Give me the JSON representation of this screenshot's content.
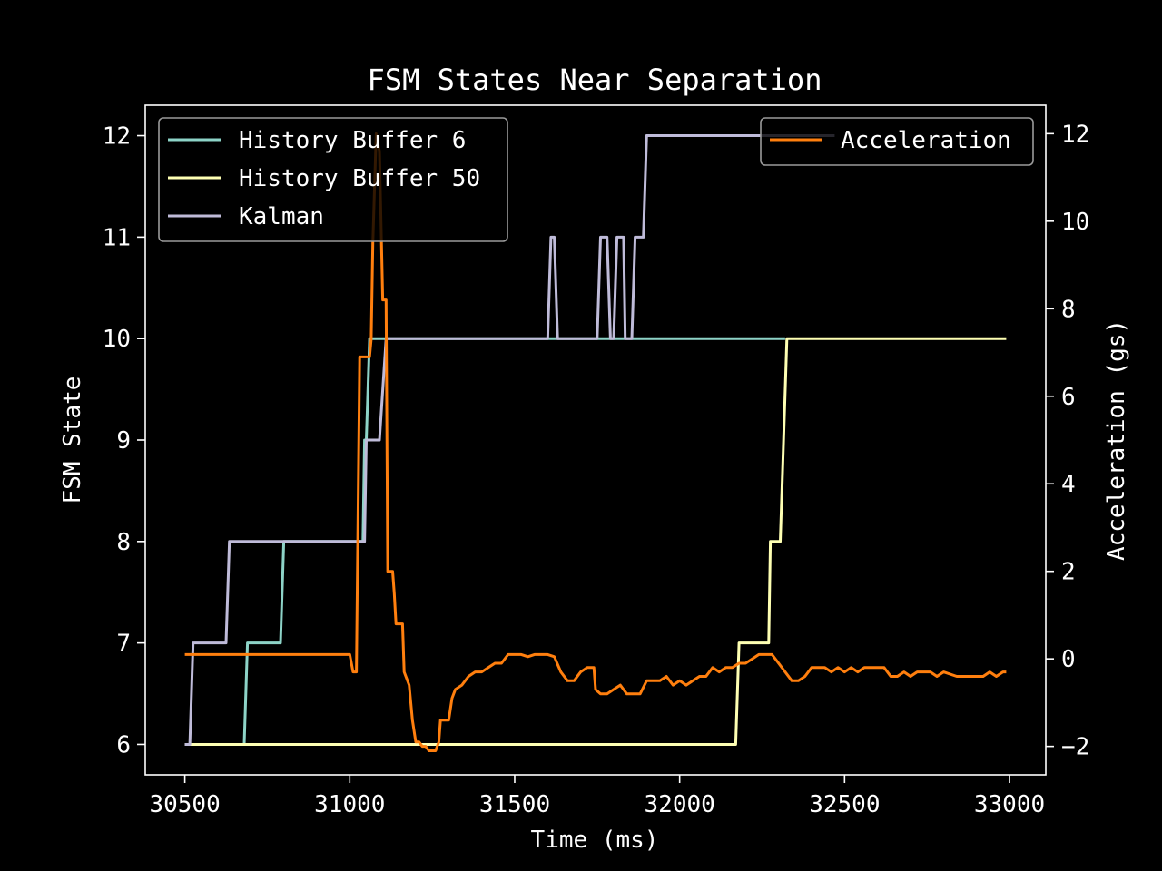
{
  "chart_data": {
    "type": "line",
    "title": "FSM States Near Separation",
    "xlabel": "Time (ms)",
    "ylabel": "FSM State",
    "ylabel_right": "Acceleration (gs)",
    "xlim": [
      30380,
      33110
    ],
    "ylim": [
      5.7,
      12.3
    ],
    "ylim_right": [
      -2.65,
      12.65
    ],
    "xticks": [
      30500,
      31000,
      31500,
      32000,
      32500,
      33000
    ],
    "yticks": [
      6,
      7,
      8,
      9,
      10,
      11,
      12
    ],
    "yticks_right": [
      -2,
      0,
      2,
      4,
      6,
      8,
      10,
      12
    ],
    "grid": false,
    "legend_left_position": "top-left",
    "legend_right_position": "top-right",
    "series": [
      {
        "name": "History Buffer 6",
        "axis": "left",
        "color": "#8dd3c7",
        "points": [
          [
            30500,
            6
          ],
          [
            30680,
            6
          ],
          [
            30690,
            7
          ],
          [
            30790,
            7
          ],
          [
            30800,
            8
          ],
          [
            31040,
            8
          ],
          [
            31045,
            9
          ],
          [
            31050,
            9
          ],
          [
            31060,
            10
          ],
          [
            32320,
            10
          ]
        ]
      },
      {
        "name": "History Buffer 50",
        "axis": "left",
        "color": "#feffb3",
        "points": [
          [
            30500,
            6
          ],
          [
            32170,
            6
          ],
          [
            32180,
            7
          ],
          [
            32270,
            7
          ],
          [
            32275,
            8
          ],
          [
            32305,
            8
          ],
          [
            32325,
            10
          ],
          [
            32990,
            10
          ]
        ]
      },
      {
        "name": "Kalman",
        "axis": "left",
        "color": "#bfbbd9",
        "points": [
          [
            30500,
            6
          ],
          [
            30515,
            6
          ],
          [
            30525,
            7
          ],
          [
            30625,
            7
          ],
          [
            30635,
            8
          ],
          [
            31045,
            8
          ],
          [
            31050,
            9
          ],
          [
            31090,
            9
          ],
          [
            31110,
            10
          ],
          [
            31600,
            10
          ],
          [
            31610,
            11
          ],
          [
            31620,
            11
          ],
          [
            31630,
            10
          ],
          [
            31750,
            10
          ],
          [
            31760,
            11
          ],
          [
            31780,
            11
          ],
          [
            31790,
            10
          ],
          [
            31800,
            10
          ],
          [
            31810,
            11
          ],
          [
            31830,
            11
          ],
          [
            31835,
            10
          ],
          [
            31855,
            10
          ],
          [
            31865,
            11
          ],
          [
            31890,
            11
          ],
          [
            31900,
            12
          ],
          [
            32470,
            12
          ]
        ]
      },
      {
        "name": "Acceleration",
        "axis": "right",
        "color": "#ff7f0e",
        "points": [
          [
            30500,
            0.1
          ],
          [
            31000,
            0.1
          ],
          [
            31010,
            -0.3
          ],
          [
            31020,
            -0.3
          ],
          [
            31030,
            6.9
          ],
          [
            31060,
            6.9
          ],
          [
            31065,
            7.3
          ],
          [
            31070,
            9.5
          ],
          [
            31080,
            12
          ],
          [
            31090,
            11.6
          ],
          [
            31100,
            8.2
          ],
          [
            31110,
            8.2
          ],
          [
            31115,
            2
          ],
          [
            31130,
            2
          ],
          [
            31135,
            1.5
          ],
          [
            31140,
            0.8
          ],
          [
            31160,
            0.8
          ],
          [
            31165,
            -0.3
          ],
          [
            31180,
            -0.6
          ],
          [
            31190,
            -1.4
          ],
          [
            31200,
            -1.9
          ],
          [
            31210,
            -1.9
          ],
          [
            31220,
            -2
          ],
          [
            31230,
            -2
          ],
          [
            31240,
            -2.1
          ],
          [
            31260,
            -2.1
          ],
          [
            31270,
            -1.9
          ],
          [
            31275,
            -1.4
          ],
          [
            31300,
            -1.4
          ],
          [
            31310,
            -0.9
          ],
          [
            31320,
            -0.7
          ],
          [
            31340,
            -0.6
          ],
          [
            31360,
            -0.4
          ],
          [
            31380,
            -0.3
          ],
          [
            31400,
            -0.3
          ],
          [
            31420,
            -0.2
          ],
          [
            31440,
            -0.1
          ],
          [
            31460,
            -0.1
          ],
          [
            31480,
            0.1
          ],
          [
            31520,
            0.1
          ],
          [
            31540,
            0.05
          ],
          [
            31560,
            0.1
          ],
          [
            31600,
            0.1
          ],
          [
            31620,
            0.05
          ],
          [
            31640,
            -0.3
          ],
          [
            31660,
            -0.5
          ],
          [
            31680,
            -0.5
          ],
          [
            31700,
            -0.3
          ],
          [
            31720,
            -0.2
          ],
          [
            31740,
            -0.2
          ],
          [
            31745,
            -0.7
          ],
          [
            31760,
            -0.8
          ],
          [
            31780,
            -0.8
          ],
          [
            31800,
            -0.7
          ],
          [
            31820,
            -0.6
          ],
          [
            31840,
            -0.8
          ],
          [
            31860,
            -0.8
          ],
          [
            31880,
            -0.8
          ],
          [
            31900,
            -0.5
          ],
          [
            31920,
            -0.5
          ],
          [
            31940,
            -0.5
          ],
          [
            31960,
            -0.4
          ],
          [
            31980,
            -0.6
          ],
          [
            32000,
            -0.5
          ],
          [
            32020,
            -0.6
          ],
          [
            32040,
            -0.5
          ],
          [
            32060,
            -0.4
          ],
          [
            32080,
            -0.4
          ],
          [
            32100,
            -0.2
          ],
          [
            32120,
            -0.3
          ],
          [
            32140,
            -0.2
          ],
          [
            32160,
            -0.2
          ],
          [
            32180,
            -0.1
          ],
          [
            32200,
            -0.1
          ],
          [
            32220,
            0
          ],
          [
            32240,
            0.1
          ],
          [
            32260,
            0.1
          ],
          [
            32280,
            0.1
          ],
          [
            32300,
            -0.1
          ],
          [
            32320,
            -0.3
          ],
          [
            32340,
            -0.5
          ],
          [
            32360,
            -0.5
          ],
          [
            32380,
            -0.4
          ],
          [
            32400,
            -0.2
          ],
          [
            32420,
            -0.2
          ],
          [
            32440,
            -0.2
          ],
          [
            32460,
            -0.3
          ],
          [
            32480,
            -0.2
          ],
          [
            32500,
            -0.3
          ],
          [
            32520,
            -0.2
          ],
          [
            32540,
            -0.3
          ],
          [
            32560,
            -0.2
          ],
          [
            32600,
            -0.2
          ],
          [
            32620,
            -0.2
          ],
          [
            32640,
            -0.4
          ],
          [
            32660,
            -0.4
          ],
          [
            32680,
            -0.3
          ],
          [
            32700,
            -0.4
          ],
          [
            32720,
            -0.3
          ],
          [
            32760,
            -0.3
          ],
          [
            32780,
            -0.4
          ],
          [
            32800,
            -0.3
          ],
          [
            32840,
            -0.4
          ],
          [
            32860,
            -0.4
          ],
          [
            32880,
            -0.4
          ],
          [
            32900,
            -0.4
          ],
          [
            32920,
            -0.4
          ],
          [
            32940,
            -0.3
          ],
          [
            32960,
            -0.4
          ],
          [
            32980,
            -0.3
          ],
          [
            32990,
            -0.3
          ]
        ]
      }
    ]
  }
}
